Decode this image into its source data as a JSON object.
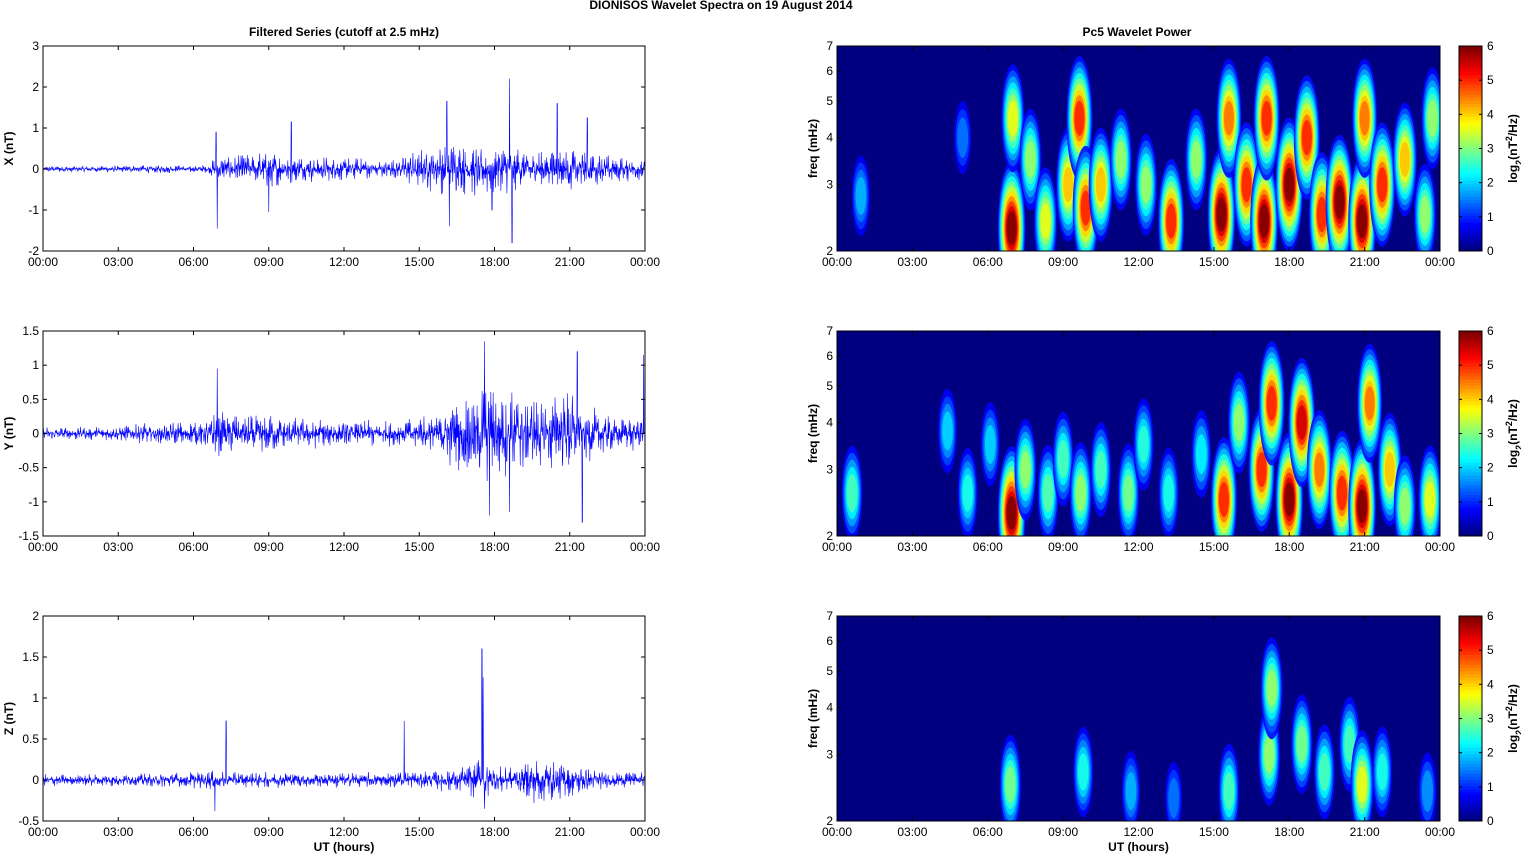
{
  "figure": {
    "title": "DIONISOS Wavelet Spectra on 19 August    2014",
    "left_title": "Filtered Series (cutoff at 2.5 mHz)",
    "right_title": "Pc5 Wavelet Power"
  },
  "chart_data": [
    {
      "type": "line",
      "ylabel": "X (nT)",
      "xlabel": "",
      "ylim": [
        -2,
        3
      ],
      "yticks": [
        "3",
        "2",
        "1",
        "0",
        "-1",
        "-2"
      ],
      "xticks": [
        "00:00",
        "03:00",
        "06:00",
        "09:00",
        "12:00",
        "15:00",
        "18:00",
        "21:00",
        "00:00"
      ],
      "color": "#0000ff",
      "envelope_hours": [
        0,
        2,
        4,
        6.5,
        6.9,
        7.5,
        9,
        10,
        12,
        14,
        15.5,
        17,
        18,
        19.5,
        21,
        22.5,
        24
      ],
      "envelope_nT": [
        0.08,
        0.08,
        0.1,
        0.1,
        0.3,
        0.3,
        0.5,
        0.35,
        0.3,
        0.25,
        0.6,
        0.7,
        0.7,
        0.45,
        0.55,
        0.35,
        0.3
      ],
      "spikes": [
        {
          "hour": 6.9,
          "nT": 0.9
        },
        {
          "hour": 6.95,
          "nT": -1.45
        },
        {
          "hour": 9.9,
          "nT": 1.15
        },
        {
          "hour": 9,
          "nT": -1.05
        },
        {
          "hour": 16.1,
          "nT": 1.65
        },
        {
          "hour": 16.2,
          "nT": -1.4
        },
        {
          "hour": 17.9,
          "nT": -1.0
        },
        {
          "hour": 18.6,
          "nT": 2.2
        },
        {
          "hour": 18.7,
          "nT": -1.8
        },
        {
          "hour": 20.5,
          "nT": 1.6
        },
        {
          "hour": 21.7,
          "nT": 1.25
        }
      ]
    },
    {
      "type": "line",
      "ylabel": "Y (nT)",
      "xlabel": "",
      "ylim": [
        -1.5,
        1.5
      ],
      "yticks": [
        "1.5",
        "1",
        "0.5",
        "0",
        "-0.5",
        "-1",
        "-1.5"
      ],
      "xticks": [
        "00:00",
        "03:00",
        "06:00",
        "09:00",
        "12:00",
        "15:00",
        "18:00",
        "21:00",
        "00:00"
      ],
      "color": "#0000ff",
      "envelope_hours": [
        0,
        2,
        4,
        6.5,
        6.9,
        8,
        10,
        12,
        14,
        15.5,
        17,
        18,
        19.5,
        21,
        22.5,
        24
      ],
      "envelope_nT": [
        0.1,
        0.1,
        0.15,
        0.2,
        0.35,
        0.3,
        0.25,
        0.2,
        0.2,
        0.3,
        0.7,
        0.8,
        0.55,
        0.65,
        0.3,
        0.25
      ],
      "spikes": [
        {
          "hour": 6.95,
          "nT": 0.95
        },
        {
          "hour": 17.6,
          "nT": 1.35
        },
        {
          "hour": 17.8,
          "nT": -1.2
        },
        {
          "hour": 18.6,
          "nT": -1.15
        },
        {
          "hour": 21.3,
          "nT": 1.2
        },
        {
          "hour": 21.5,
          "nT": -1.3
        },
        {
          "hour": 23.95,
          "nT": 1.15
        }
      ]
    },
    {
      "type": "line",
      "ylabel": "Z (nT)",
      "xlabel": "UT (hours)",
      "ylim": [
        -0.5,
        2
      ],
      "yticks": [
        "2",
        "1.5",
        "1",
        "0.5",
        "0",
        "-0.5"
      ],
      "xticks": [
        "00:00",
        "03:00",
        "06:00",
        "09:00",
        "12:00",
        "15:00",
        "18:00",
        "21:00",
        "00:00"
      ],
      "color": "#0000ff",
      "envelope_hours": [
        0,
        4,
        6.8,
        7.5,
        10,
        12,
        14,
        15.5,
        17,
        17.6,
        18.5,
        19.5,
        20.5,
        22.5,
        24
      ],
      "envelope_nT": [
        0.08,
        0.08,
        0.12,
        0.1,
        0.1,
        0.1,
        0.1,
        0.12,
        0.2,
        0.3,
        0.15,
        0.3,
        0.25,
        0.1,
        0.1
      ],
      "spikes": [
        {
          "hour": 6.85,
          "nT": -0.38
        },
        {
          "hour": 7.3,
          "nT": 0.72
        },
        {
          "hour": 14.4,
          "nT": 0.72
        },
        {
          "hour": 17.5,
          "nT": 1.6
        },
        {
          "hour": 17.55,
          "nT": 1.25
        },
        {
          "hour": 17.6,
          "nT": -0.35
        },
        {
          "hour": 24,
          "nT": -0.4
        }
      ]
    },
    {
      "type": "heatmap",
      "ylabel": "freq (mHz)",
      "xlabel": "",
      "scale": "log",
      "ylim": [
        2,
        7
      ],
      "yticks": [
        "7",
        "6",
        "5",
        "4",
        "3",
        "2"
      ],
      "xticks": [
        "00:00",
        "03:00",
        "06:00",
        "09:00",
        "12:00",
        "15:00",
        "18:00",
        "21:00",
        "00:00"
      ],
      "colorbar_label": "log2(nT2/Hz)",
      "colorbar_ticks": [
        "6",
        "5",
        "4",
        "3",
        "2",
        "1",
        "0"
      ],
      "clim": [
        0,
        6
      ],
      "colormap": "jet",
      "events": [
        {
          "hour": 0.95,
          "mHz": 2.8,
          "power": 1.6
        },
        {
          "hour": 5,
          "mHz": 4.0,
          "power": 1.2
        },
        {
          "hour": 6.95,
          "mHz": 2.3,
          "power": 6
        },
        {
          "hour": 7.0,
          "mHz": 4.5,
          "power": 3.5
        },
        {
          "hour": 7.7,
          "mHz": 3.5,
          "power": 3
        },
        {
          "hour": 8.3,
          "mHz": 2.4,
          "power": 3.5
        },
        {
          "hour": 9.2,
          "mHz": 3.0,
          "power": 4
        },
        {
          "hour": 9.65,
          "mHz": 4.5,
          "power": 5
        },
        {
          "hour": 9.9,
          "mHz": 2.6,
          "power": 5
        },
        {
          "hour": 10.5,
          "mHz": 3.0,
          "power": 4
        },
        {
          "hour": 11.3,
          "mHz": 3.5,
          "power": 3
        },
        {
          "hour": 12.3,
          "mHz": 3.0,
          "power": 3
        },
        {
          "hour": 13.3,
          "mHz": 2.4,
          "power": 5
        },
        {
          "hour": 14.3,
          "mHz": 3.5,
          "power": 3
        },
        {
          "hour": 15.3,
          "mHz": 2.5,
          "power": 6
        },
        {
          "hour": 15.6,
          "mHz": 4.5,
          "power": 4.5
        },
        {
          "hour": 16.3,
          "mHz": 3.0,
          "power": 5
        },
        {
          "hour": 17.0,
          "mHz": 2.4,
          "power": 6
        },
        {
          "hour": 17.1,
          "mHz": 4.5,
          "power": 5
        },
        {
          "hour": 18.0,
          "mHz": 3.0,
          "power": 6
        },
        {
          "hour": 18.7,
          "mHz": 4.0,
          "power": 5
        },
        {
          "hour": 19.3,
          "mHz": 2.5,
          "power": 5
        },
        {
          "hour": 20.0,
          "mHz": 2.7,
          "power": 6
        },
        {
          "hour": 20.9,
          "mHz": 2.4,
          "power": 6
        },
        {
          "hour": 21.0,
          "mHz": 4.5,
          "power": 4.5
        },
        {
          "hour": 21.7,
          "mHz": 3.0,
          "power": 5
        },
        {
          "hour": 22.6,
          "mHz": 3.5,
          "power": 4
        },
        {
          "hour": 23.4,
          "mHz": 2.5,
          "power": 3
        },
        {
          "hour": 23.7,
          "mHz": 4.5,
          "power": 3
        }
      ]
    },
    {
      "type": "heatmap",
      "ylabel": "freq (mHz)",
      "xlabel": "",
      "scale": "log",
      "ylim": [
        2,
        7
      ],
      "yticks": [
        "7",
        "6",
        "5",
        "4",
        "3",
        "2"
      ],
      "xticks": [
        "00:00",
        "03:00",
        "06:00",
        "09:00",
        "12:00",
        "15:00",
        "18:00",
        "21:00",
        "00:00"
      ],
      "colorbar_label": "log2(nT2/Hz)",
      "colorbar_ticks": [
        "6",
        "5",
        "4",
        "3",
        "2",
        "1",
        "0"
      ],
      "clim": [
        0,
        6
      ],
      "colormap": "jet",
      "events": [
        {
          "hour": 0.6,
          "mHz": 2.6,
          "power": 2.5
        },
        {
          "hour": 4.4,
          "mHz": 3.8,
          "power": 1.8
        },
        {
          "hour": 5.2,
          "mHz": 2.6,
          "power": 2.2
        },
        {
          "hour": 6.1,
          "mHz": 3.5,
          "power": 1.8
        },
        {
          "hour": 6.95,
          "mHz": 2.3,
          "power": 6
        },
        {
          "hour": 7.5,
          "mHz": 3.0,
          "power": 3
        },
        {
          "hour": 8.4,
          "mHz": 2.6,
          "power": 2.6
        },
        {
          "hour": 9.0,
          "mHz": 3.2,
          "power": 2.5
        },
        {
          "hour": 9.7,
          "mHz": 2.6,
          "power": 3
        },
        {
          "hour": 10.5,
          "mHz": 3.0,
          "power": 2.5
        },
        {
          "hour": 11.6,
          "mHz": 2.6,
          "power": 2.8
        },
        {
          "hour": 12.2,
          "mHz": 3.5,
          "power": 2.3
        },
        {
          "hour": 13.2,
          "mHz": 2.6,
          "power": 2.2
        },
        {
          "hour": 14.5,
          "mHz": 3.3,
          "power": 2
        },
        {
          "hour": 15.4,
          "mHz": 2.5,
          "power": 5
        },
        {
          "hour": 16.0,
          "mHz": 4.0,
          "power": 3
        },
        {
          "hour": 16.9,
          "mHz": 3.0,
          "power": 5
        },
        {
          "hour": 17.3,
          "mHz": 4.5,
          "power": 5
        },
        {
          "hour": 18.0,
          "mHz": 2.5,
          "power": 6
        },
        {
          "hour": 18.5,
          "mHz": 4.0,
          "power": 5.5
        },
        {
          "hour": 19.2,
          "mHz": 3.0,
          "power": 4.5
        },
        {
          "hour": 20.1,
          "mHz": 2.6,
          "power": 5
        },
        {
          "hour": 20.9,
          "mHz": 2.4,
          "power": 6
        },
        {
          "hour": 21.2,
          "mHz": 4.5,
          "power": 4.5
        },
        {
          "hour": 22.0,
          "mHz": 3.0,
          "power": 4
        },
        {
          "hour": 22.6,
          "mHz": 2.4,
          "power": 3
        },
        {
          "hour": 23.6,
          "mHz": 2.5,
          "power": 3.5
        }
      ]
    },
    {
      "type": "heatmap",
      "ylabel": "freq (mHz)",
      "xlabel": "UT (hours)",
      "scale": "log",
      "ylim": [
        2,
        7
      ],
      "yticks": [
        "7",
        "6",
        "5",
        "4",
        "3",
        "2"
      ],
      "xticks": [
        "00:00",
        "03:00",
        "06:00",
        "09:00",
        "12:00",
        "15:00",
        "18:00",
        "21:00",
        "00:00"
      ],
      "colorbar_label": "log2(nT2/Hz)",
      "colorbar_ticks": [
        "6",
        "5",
        "4",
        "3",
        "2",
        "1",
        "0"
      ],
      "clim": [
        0,
        6
      ],
      "colormap": "jet",
      "events": [
        {
          "hour": 6.9,
          "mHz": 2.5,
          "power": 2.8
        },
        {
          "hour": 9.8,
          "mHz": 2.7,
          "power": 2.2
        },
        {
          "hour": 11.7,
          "mHz": 2.4,
          "power": 1.6
        },
        {
          "hour": 13.4,
          "mHz": 2.3,
          "power": 1.2
        },
        {
          "hour": 15.6,
          "mHz": 2.4,
          "power": 2.5
        },
        {
          "hour": 17.2,
          "mHz": 3.0,
          "power": 3
        },
        {
          "hour": 17.3,
          "mHz": 4.5,
          "power": 3
        },
        {
          "hour": 18.5,
          "mHz": 3.2,
          "power": 2.8
        },
        {
          "hour": 19.4,
          "mHz": 2.7,
          "power": 2.5
        },
        {
          "hour": 20.4,
          "mHz": 3.2,
          "power": 2.5
        },
        {
          "hour": 20.9,
          "mHz": 2.5,
          "power": 3.5
        },
        {
          "hour": 21.7,
          "mHz": 2.7,
          "power": 2.2
        },
        {
          "hour": 23.5,
          "mHz": 2.4,
          "power": 1.4
        }
      ]
    }
  ]
}
